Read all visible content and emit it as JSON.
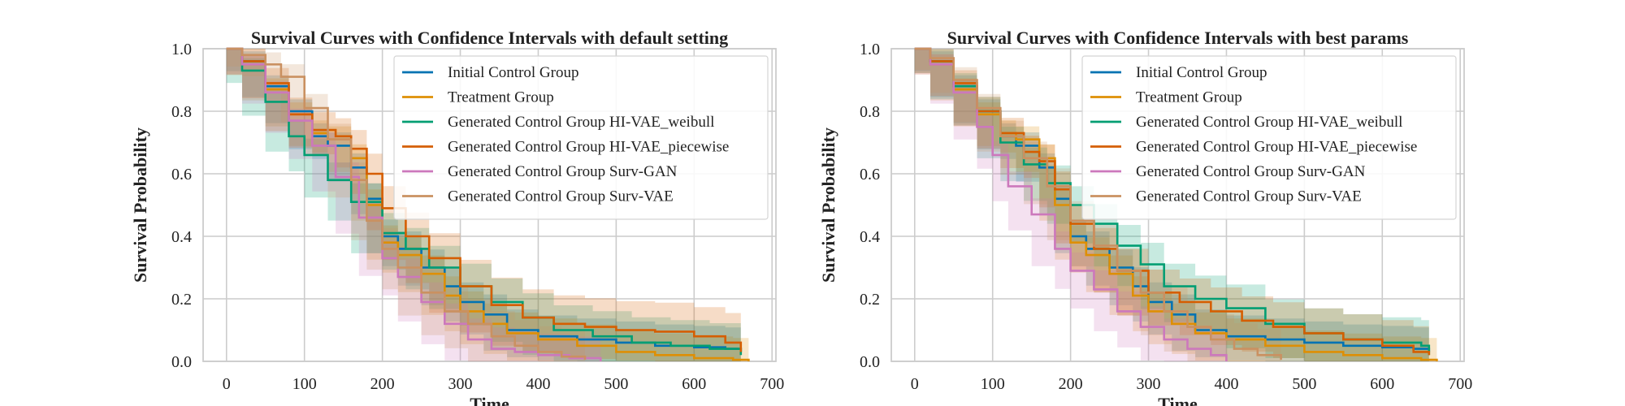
{
  "chart_data": [
    {
      "type": "line",
      "title": "Survival Curves with Confidence Intervals with default setting",
      "xlabel": "Time",
      "ylabel": "Survival Probability",
      "xlim": [
        -30,
        705
      ],
      "ylim": [
        0,
        1
      ],
      "xticks": [
        "0",
        "100",
        "200",
        "300",
        "400",
        "500",
        "600",
        "700"
      ],
      "yticks": [
        "0.0",
        "0.2",
        "0.4",
        "0.6",
        "0.8",
        "1.0"
      ],
      "grid": true,
      "legend_position": "upper right",
      "series": [
        {
          "name": "Initial Control Group",
          "color": "#0173b2",
          "x": [
            0,
            20,
            50,
            80,
            110,
            130,
            160,
            180,
            200,
            220,
            250,
            280,
            300,
            330,
            360,
            400,
            450,
            500,
            550,
            600,
            640,
            660
          ],
          "y": [
            1.0,
            0.96,
            0.88,
            0.8,
            0.72,
            0.69,
            0.62,
            0.52,
            0.4,
            0.36,
            0.3,
            0.24,
            0.19,
            0.15,
            0.1,
            0.08,
            0.07,
            0.06,
            0.05,
            0.045,
            0.04,
            0.03
          ],
          "ci_band": 0.05
        },
        {
          "name": "Treatment Group",
          "color": "#de8f05",
          "x": [
            0,
            20,
            50,
            80,
            110,
            130,
            160,
            180,
            200,
            220,
            250,
            280,
            300,
            330,
            360,
            400,
            450,
            500,
            550,
            600,
            650,
            670
          ],
          "y": [
            1.0,
            0.95,
            0.87,
            0.79,
            0.73,
            0.71,
            0.65,
            0.5,
            0.38,
            0.34,
            0.28,
            0.21,
            0.16,
            0.12,
            0.09,
            0.07,
            0.05,
            0.03,
            0.02,
            0.01,
            0.005,
            0.0
          ],
          "ci_band": 0.05
        },
        {
          "name": "Generated Control Group HI-VAE_weibull",
          "color": "#029e73",
          "x": [
            0,
            20,
            50,
            80,
            100,
            130,
            160,
            200,
            230,
            260,
            300,
            340,
            380,
            420,
            470,
            520,
            570,
            620,
            660
          ],
          "y": [
            1.0,
            0.93,
            0.83,
            0.72,
            0.66,
            0.58,
            0.51,
            0.41,
            0.36,
            0.3,
            0.24,
            0.19,
            0.14,
            0.1,
            0.08,
            0.06,
            0.05,
            0.04,
            0.02
          ],
          "ci_band": 0.06
        },
        {
          "name": "Generated Control Group HI-VAE_piecewise",
          "color": "#d55e00",
          "x": [
            0,
            20,
            50,
            80,
            110,
            140,
            160,
            180,
            200,
            230,
            260,
            300,
            340,
            380,
            420,
            460,
            500,
            550,
            600,
            640,
            660
          ],
          "y": [
            1.0,
            0.96,
            0.89,
            0.79,
            0.74,
            0.72,
            0.68,
            0.6,
            0.49,
            0.4,
            0.33,
            0.24,
            0.18,
            0.14,
            0.12,
            0.11,
            0.1,
            0.095,
            0.08,
            0.06,
            0.03
          ],
          "ci_band": 0.07
        },
        {
          "name": "Generated Control Group Surv-GAN",
          "color": "#cc78bc",
          "x": [
            0,
            20,
            50,
            80,
            110,
            140,
            170,
            200,
            220,
            250,
            280,
            310,
            340,
            370,
            400,
            440,
            480
          ],
          "y": [
            1.0,
            0.95,
            0.86,
            0.77,
            0.69,
            0.59,
            0.46,
            0.33,
            0.27,
            0.19,
            0.12,
            0.07,
            0.04,
            0.03,
            0.02,
            0.01,
            0.0
          ],
          "ci_band": 0.05
        },
        {
          "name": "Generated Control Group Surv-VAE",
          "color": "#ca9161",
          "x": [
            0,
            20,
            50,
            70,
            100,
            130,
            160,
            180,
            200,
            220,
            250,
            280,
            310,
            340,
            370,
            400,
            430,
            460
          ],
          "y": [
            1.0,
            0.98,
            0.95,
            0.91,
            0.81,
            0.71,
            0.58,
            0.45,
            0.36,
            0.3,
            0.22,
            0.16,
            0.12,
            0.08,
            0.05,
            0.03,
            0.015,
            0.005
          ],
          "ci_band": 0.06
        }
      ]
    },
    {
      "type": "line",
      "title": "Survival Curves with Confidence Intervals with best params",
      "xlabel": "Time",
      "ylabel": "Survival Probability",
      "xlim": [
        -30,
        705
      ],
      "ylim": [
        0,
        1
      ],
      "xticks": [
        "0",
        "100",
        "200",
        "300",
        "400",
        "500",
        "600",
        "700"
      ],
      "yticks": [
        "0.0",
        "0.2",
        "0.4",
        "0.6",
        "0.8",
        "1.0"
      ],
      "grid": true,
      "legend_position": "upper right",
      "series": [
        {
          "name": "Initial Control Group",
          "color": "#0173b2",
          "x": [
            0,
            20,
            50,
            80,
            110,
            130,
            160,
            180,
            200,
            220,
            250,
            280,
            300,
            330,
            360,
            400,
            450,
            500,
            550,
            600,
            640,
            660
          ],
          "y": [
            1.0,
            0.96,
            0.88,
            0.8,
            0.72,
            0.69,
            0.62,
            0.52,
            0.4,
            0.36,
            0.3,
            0.24,
            0.19,
            0.15,
            0.1,
            0.08,
            0.07,
            0.06,
            0.05,
            0.045,
            0.04,
            0.03
          ],
          "ci_band": 0.05
        },
        {
          "name": "Treatment Group",
          "color": "#de8f05",
          "x": [
            0,
            20,
            50,
            80,
            110,
            130,
            160,
            180,
            200,
            220,
            250,
            280,
            300,
            330,
            360,
            400,
            450,
            500,
            550,
            600,
            650,
            670
          ],
          "y": [
            1.0,
            0.95,
            0.87,
            0.79,
            0.73,
            0.71,
            0.65,
            0.5,
            0.38,
            0.34,
            0.28,
            0.21,
            0.16,
            0.12,
            0.09,
            0.07,
            0.05,
            0.03,
            0.02,
            0.01,
            0.005,
            0.0
          ],
          "ci_band": 0.05
        },
        {
          "name": "Generated Control Group HI-VAE_weibull",
          "color": "#029e73",
          "x": [
            0,
            20,
            50,
            80,
            110,
            140,
            170,
            200,
            230,
            260,
            290,
            320,
            360,
            400,
            450,
            500,
            550,
            600,
            650,
            660
          ],
          "y": [
            1.0,
            0.96,
            0.88,
            0.8,
            0.7,
            0.63,
            0.57,
            0.5,
            0.44,
            0.37,
            0.31,
            0.24,
            0.2,
            0.17,
            0.12,
            0.09,
            0.07,
            0.06,
            0.05,
            0.02
          ],
          "ci_band": 0.06
        },
        {
          "name": "Generated Control Group HI-VAE_piecewise",
          "color": "#d55e00",
          "x": [
            0,
            20,
            50,
            80,
            110,
            140,
            160,
            180,
            200,
            230,
            260,
            300,
            340,
            380,
            420,
            460,
            500,
            550,
            600,
            640,
            660
          ],
          "y": [
            1.0,
            0.96,
            0.89,
            0.8,
            0.73,
            0.67,
            0.64,
            0.55,
            0.44,
            0.36,
            0.29,
            0.22,
            0.19,
            0.16,
            0.13,
            0.11,
            0.09,
            0.07,
            0.05,
            0.03,
            0.02
          ],
          "ci_band": 0.06
        },
        {
          "name": "Generated Control Group Surv-GAN",
          "color": "#cc78bc",
          "x": [
            0,
            20,
            50,
            80,
            100,
            120,
            150,
            180,
            200,
            230,
            260,
            290,
            320,
            350,
            380,
            400
          ],
          "y": [
            1.0,
            0.95,
            0.86,
            0.75,
            0.66,
            0.56,
            0.47,
            0.36,
            0.29,
            0.23,
            0.16,
            0.11,
            0.07,
            0.04,
            0.02,
            0.0
          ],
          "ci_band": 0.05
        },
        {
          "name": "Generated Control Group Surv-VAE",
          "color": "#ca9161",
          "x": [
            0,
            20,
            50,
            80,
            110,
            140,
            170,
            200,
            230,
            260,
            290,
            320,
            350,
            380,
            410,
            440,
            470
          ],
          "y": [
            1.0,
            0.97,
            0.9,
            0.81,
            0.72,
            0.65,
            0.56,
            0.45,
            0.37,
            0.29,
            0.22,
            0.16,
            0.11,
            0.07,
            0.04,
            0.02,
            0.005
          ],
          "ci_band": 0.06
        }
      ]
    }
  ]
}
